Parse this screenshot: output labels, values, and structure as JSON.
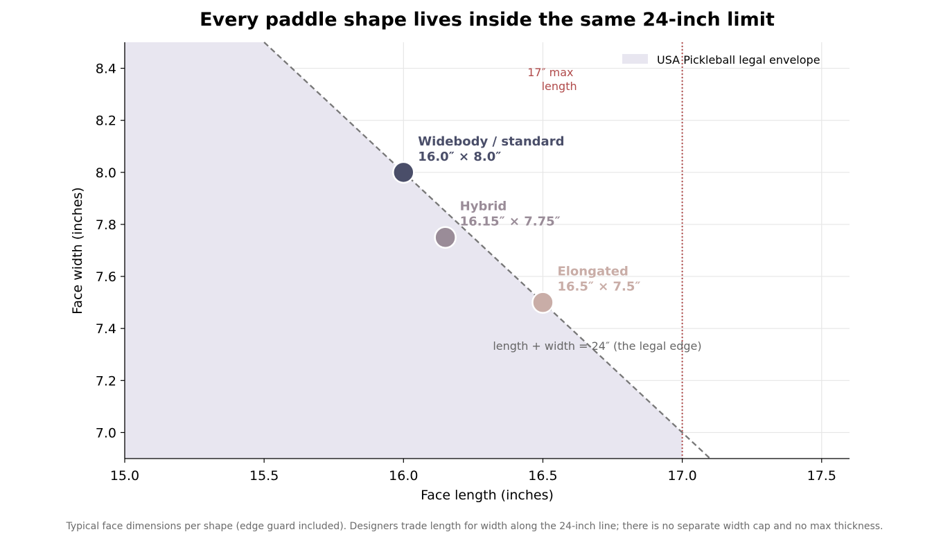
{
  "chart_data": {
    "type": "scatter",
    "title": "Every paddle shape lives inside the same 24-inch limit",
    "xlabel": "Face length (inches)",
    "ylabel": "Face width (inches)",
    "xlim": [
      15.0,
      17.6
    ],
    "ylim": [
      6.9,
      8.5
    ],
    "x_ticks": [
      "15.0",
      "15.5",
      "16.0",
      "16.5",
      "17.0",
      "17.5"
    ],
    "y_ticks": [
      "7.0",
      "7.2",
      "7.4",
      "7.6",
      "7.8",
      "8.0",
      "8.2",
      "8.4"
    ],
    "grid": true,
    "legend": {
      "placement": "top-right",
      "entries": [
        "USA Pickleball legal envelope"
      ]
    },
    "envelope_sum": 24,
    "max_length": 17.0,
    "max_length_label": [
      "17″ max",
      "length"
    ],
    "edge_label": "length + width = 24″ (the legal edge)",
    "points": [
      {
        "name": "Widebody / standard",
        "dims": "16.0″ × 8.0″",
        "x": 16.0,
        "y": 8.0,
        "color": "#4a4e69"
      },
      {
        "name": "Hybrid",
        "dims": "16.15″ × 7.75″",
        "x": 16.15,
        "y": 7.75,
        "color": "#9a8c98"
      },
      {
        "name": "Elongated",
        "dims": "16.5″ × 7.5″",
        "x": 16.5,
        "y": 7.5,
        "color": "#c9ada7"
      }
    ],
    "colors": {
      "envelope": "#e8e6f0",
      "edge_line": "#777777",
      "limit_line": "#b04a4a",
      "grid": "#e6e6e6"
    }
  },
  "caption": "Typical face dimensions per shape (edge guard included). Designers trade length for width along the 24-inch line; there is no separate width cap and no max thickness."
}
